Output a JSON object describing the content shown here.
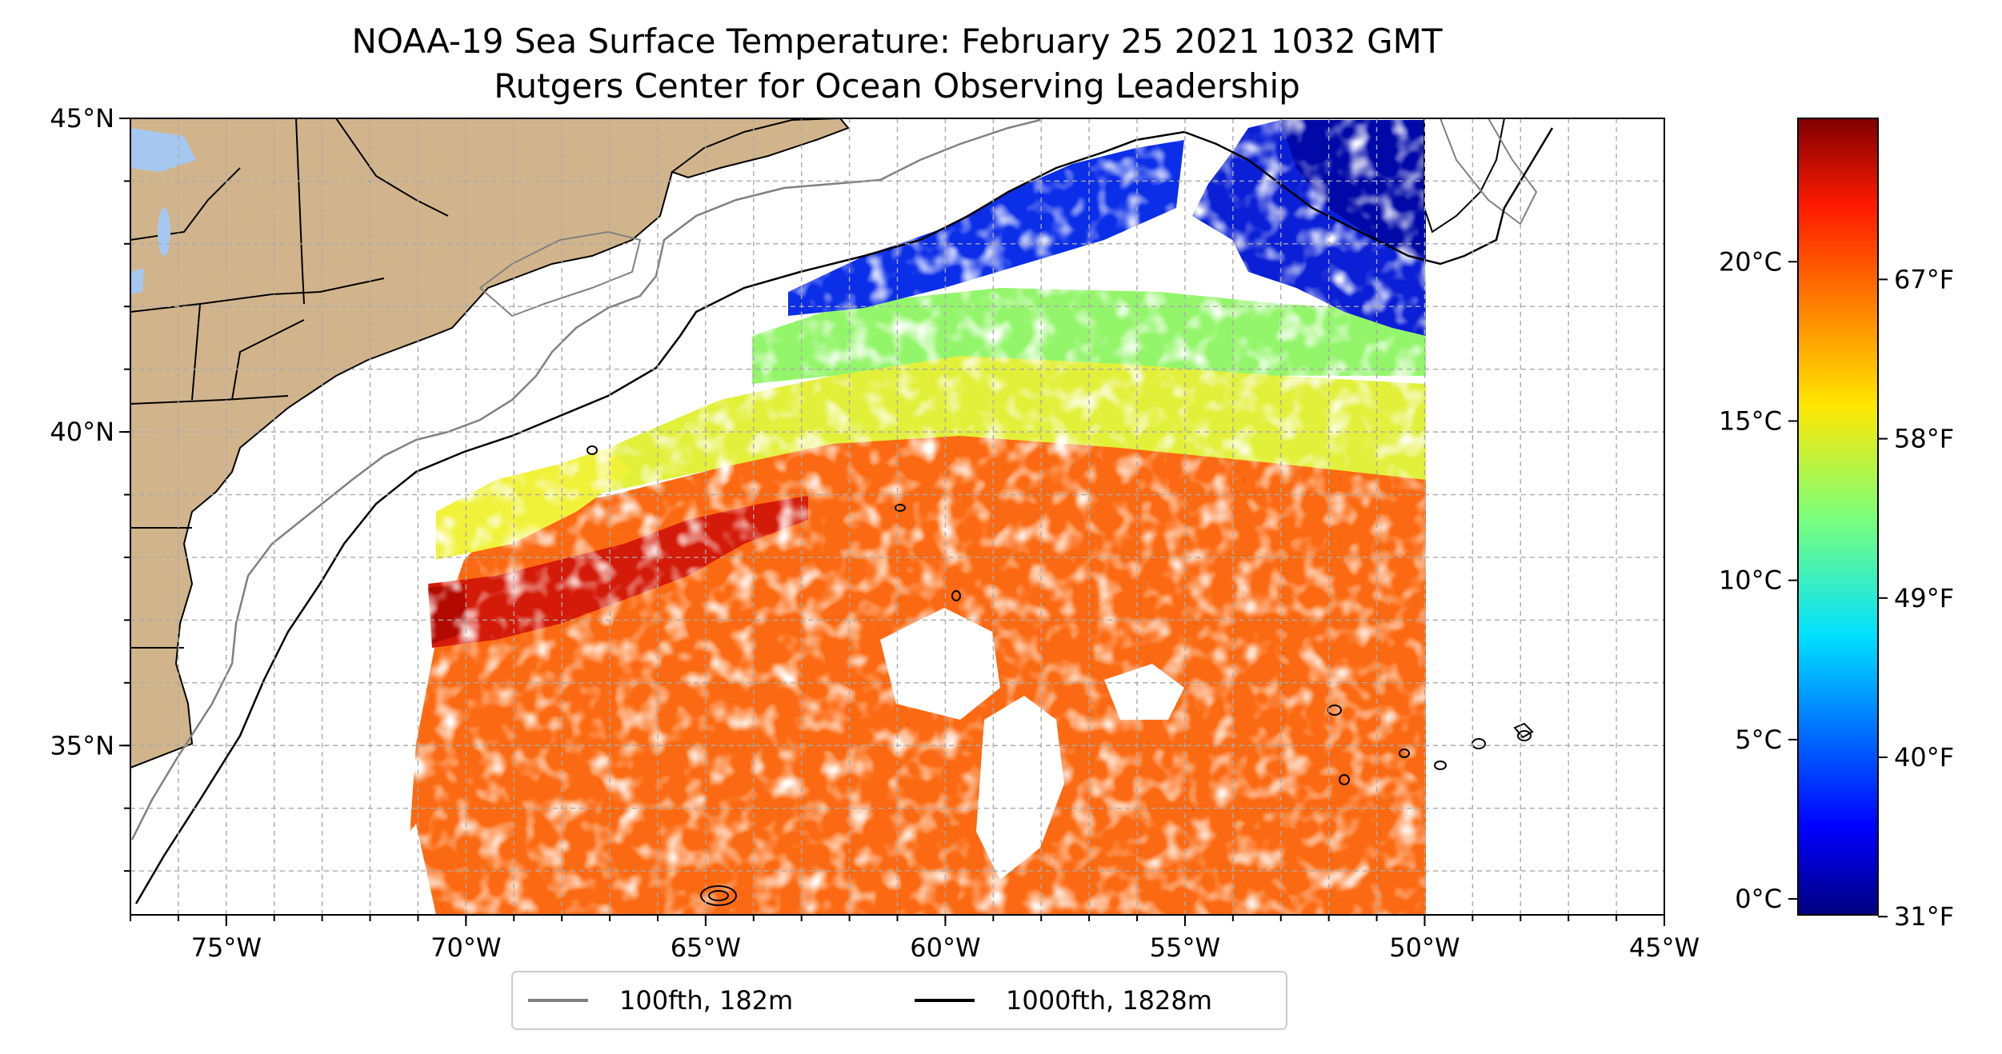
{
  "title": {
    "line1": "NOAA-19 Sea Surface Temperature: February 25 2021 1032 GMT",
    "line2": "Rutgers Center for Ocean Observing Leadership"
  },
  "map": {
    "lon_range": [
      -77,
      -45
    ],
    "lat_range": [
      32.3,
      45
    ],
    "lat_ticks": [
      {
        "value": 45,
        "label": "45°N"
      },
      {
        "value": 40,
        "label": "40°N"
      },
      {
        "value": 35,
        "label": "35°N"
      }
    ],
    "lon_ticks": [
      {
        "value": -75,
        "label": "75°W"
      },
      {
        "value": -70,
        "label": "70°W"
      },
      {
        "value": -65,
        "label": "65°W"
      },
      {
        "value": -60,
        "label": "60°W"
      },
      {
        "value": -55,
        "label": "55°W"
      },
      {
        "value": -50,
        "label": "50°W"
      },
      {
        "value": -45,
        "label": "45°W"
      }
    ],
    "gridlines": true,
    "land_color": "#d2b48c",
    "lake_color": "#a6c8f0"
  },
  "legend": {
    "items": [
      {
        "label": "100fth, 182m",
        "color": "#808080"
      },
      {
        "label": "1000fth, 1828m",
        "color": "#000000"
      }
    ]
  },
  "colorbar": {
    "colormap": "jet",
    "range_c": [
      -0.5,
      24.5
    ],
    "celsius_ticks": [
      {
        "value": 0,
        "label": "0°C"
      },
      {
        "value": 5,
        "label": "5°C"
      },
      {
        "value": 10,
        "label": "10°C"
      },
      {
        "value": 15,
        "label": "15°C"
      },
      {
        "value": 20,
        "label": "20°C"
      }
    ],
    "fahrenheit_ticks": [
      {
        "value": 31,
        "label": "31°F"
      },
      {
        "value": 40,
        "label": "40°F"
      },
      {
        "value": 49,
        "label": "49°F"
      },
      {
        "value": 58,
        "label": "58°F"
      },
      {
        "value": 67,
        "label": "67°F"
      }
    ]
  }
}
